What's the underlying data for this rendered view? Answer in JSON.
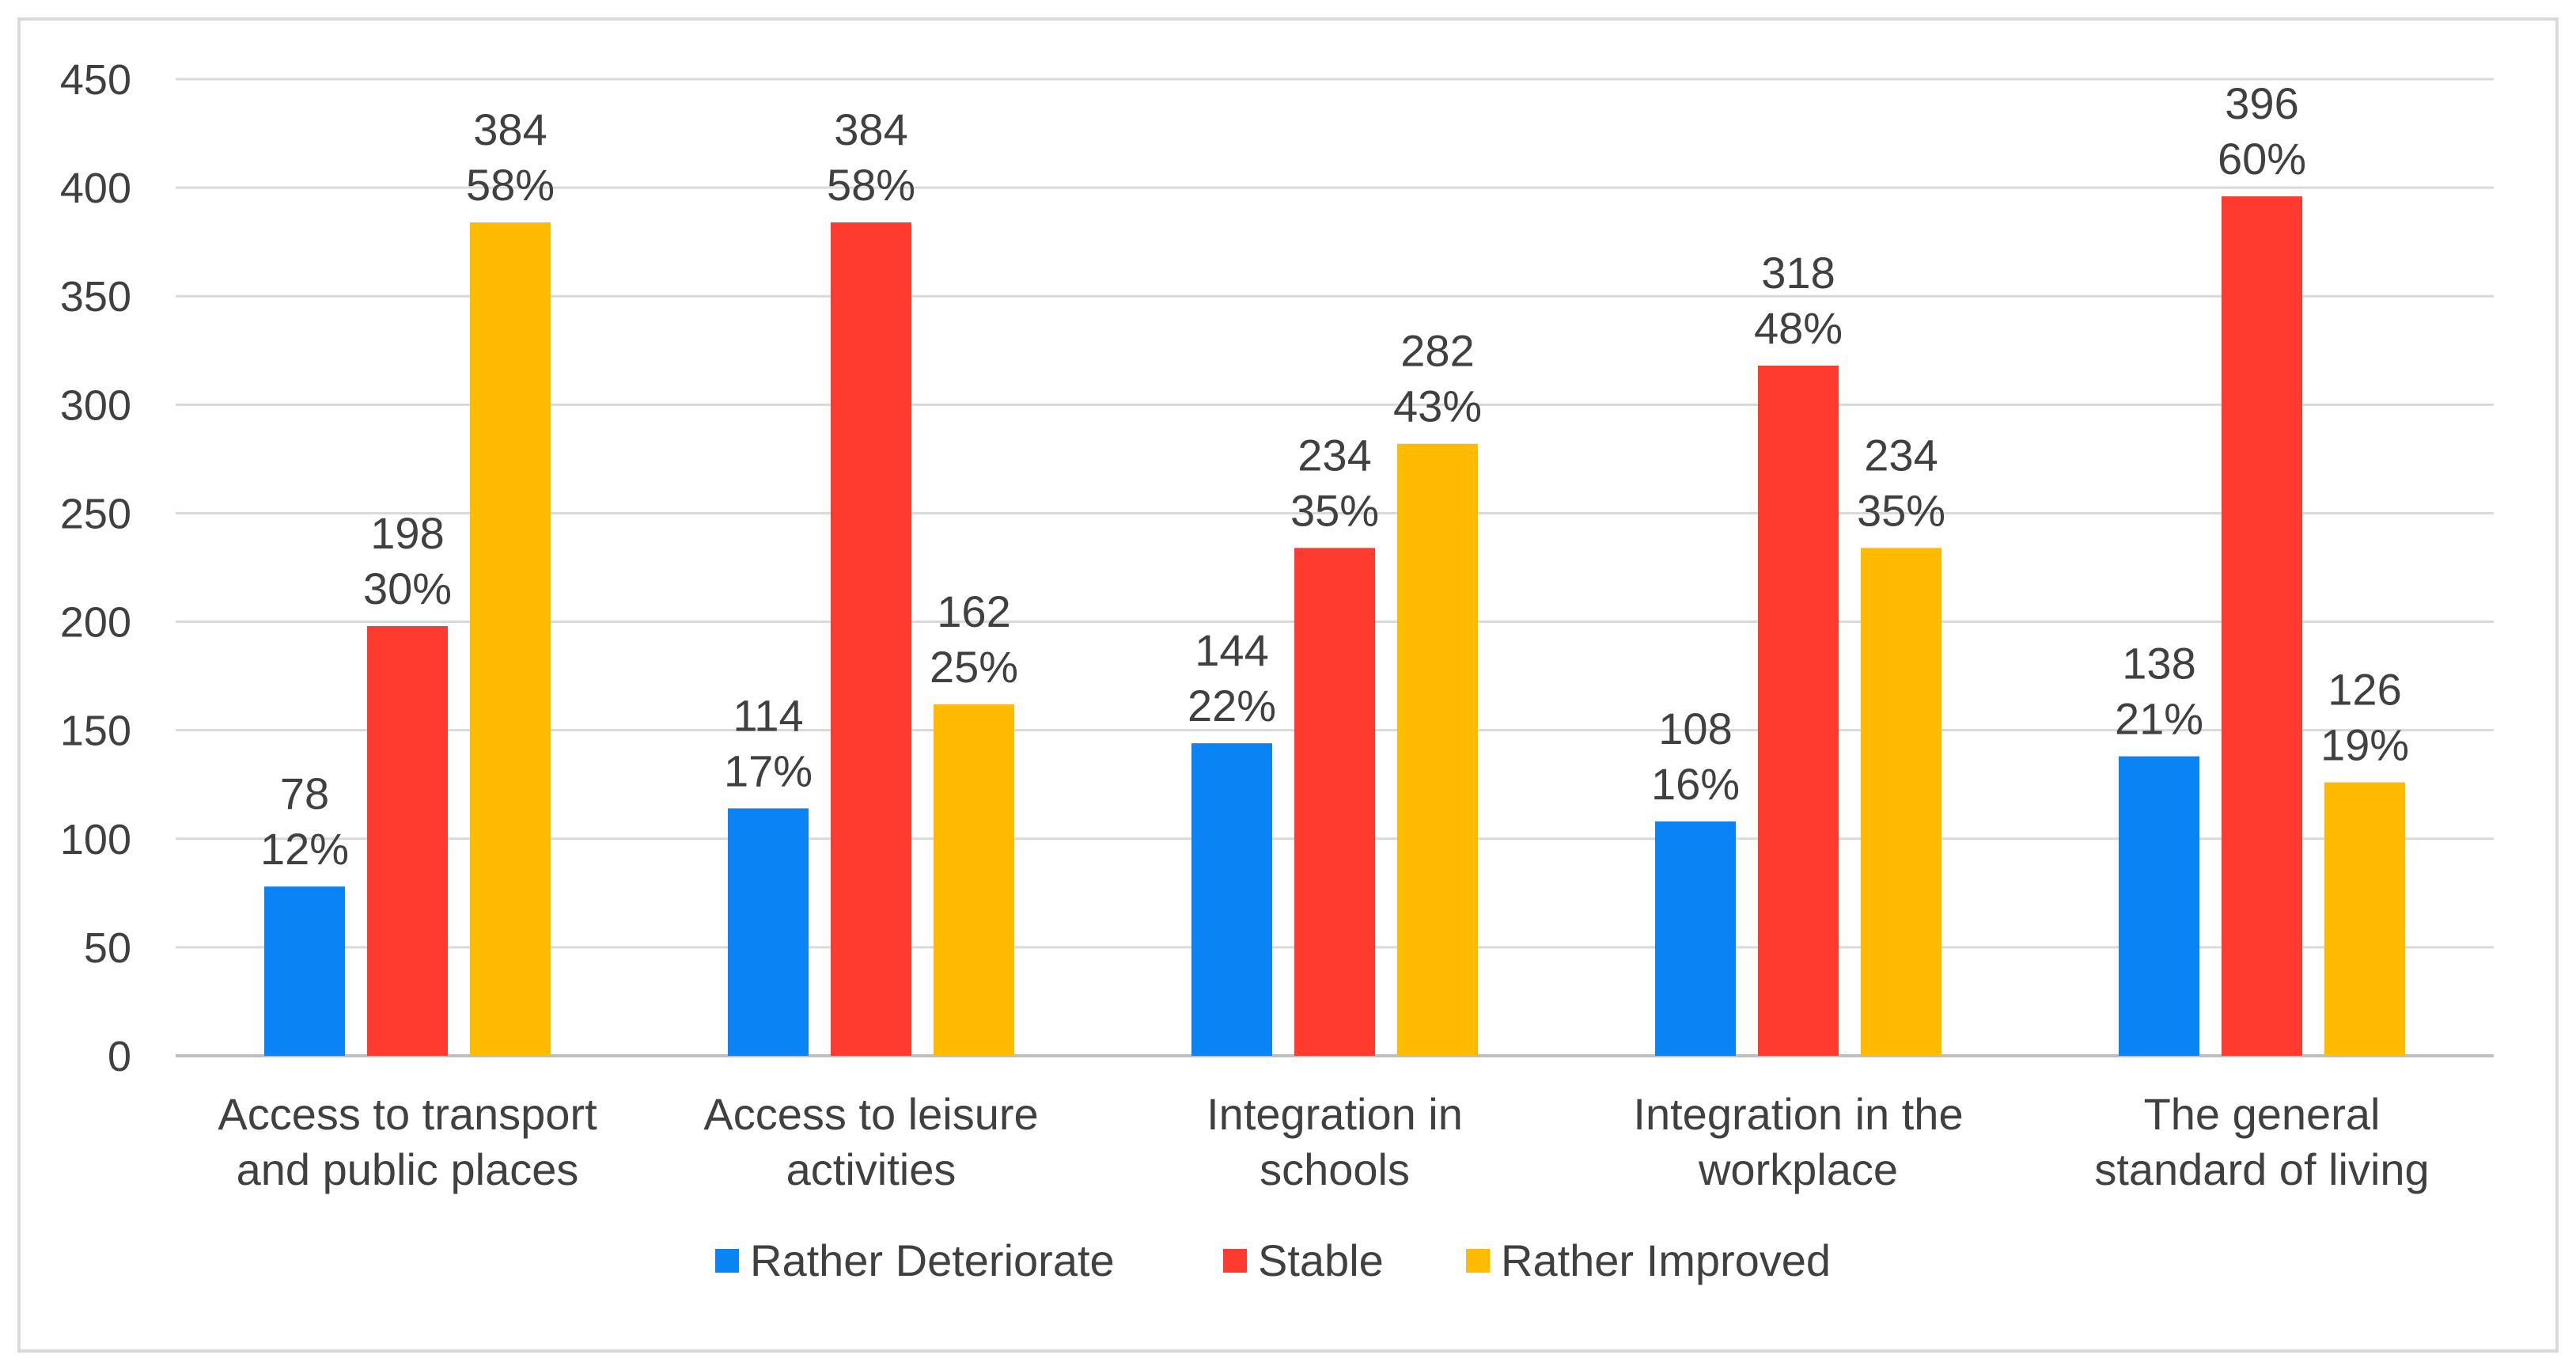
{
  "chart_data": {
    "type": "bar",
    "title": "",
    "xlabel": "",
    "ylabel": "",
    "ylim": [
      0,
      450
    ],
    "yticks": [
      0,
      50,
      100,
      150,
      200,
      250,
      300,
      350,
      400,
      450
    ],
    "grid": true,
    "legend_position": "bottom",
    "categories": [
      [
        "Access to transport",
        "and public places"
      ],
      [
        "Access to leisure",
        "activities"
      ],
      [
        "Integration in",
        "schools"
      ],
      [
        "Integration in the",
        "workplace"
      ],
      [
        "The general",
        "standard of living"
      ]
    ],
    "series": [
      {
        "name": "Rather Deteriorate",
        "color": "#0a84f5",
        "values": [
          78,
          114,
          144,
          108,
          138
        ],
        "percents": [
          "12%",
          "17%",
          "22%",
          "16%",
          "21%"
        ]
      },
      {
        "name": "Stable",
        "color": "#ff3b30",
        "values": [
          198,
          384,
          234,
          318,
          396
        ],
        "percents": [
          "30%",
          "58%",
          "35%",
          "48%",
          "60%"
        ]
      },
      {
        "name": "Rather Improved",
        "color": "#ffbb00",
        "values": [
          384,
          162,
          282,
          234,
          126
        ],
        "percents": [
          "58%",
          "25%",
          "43%",
          "35%",
          "19%"
        ]
      }
    ]
  }
}
